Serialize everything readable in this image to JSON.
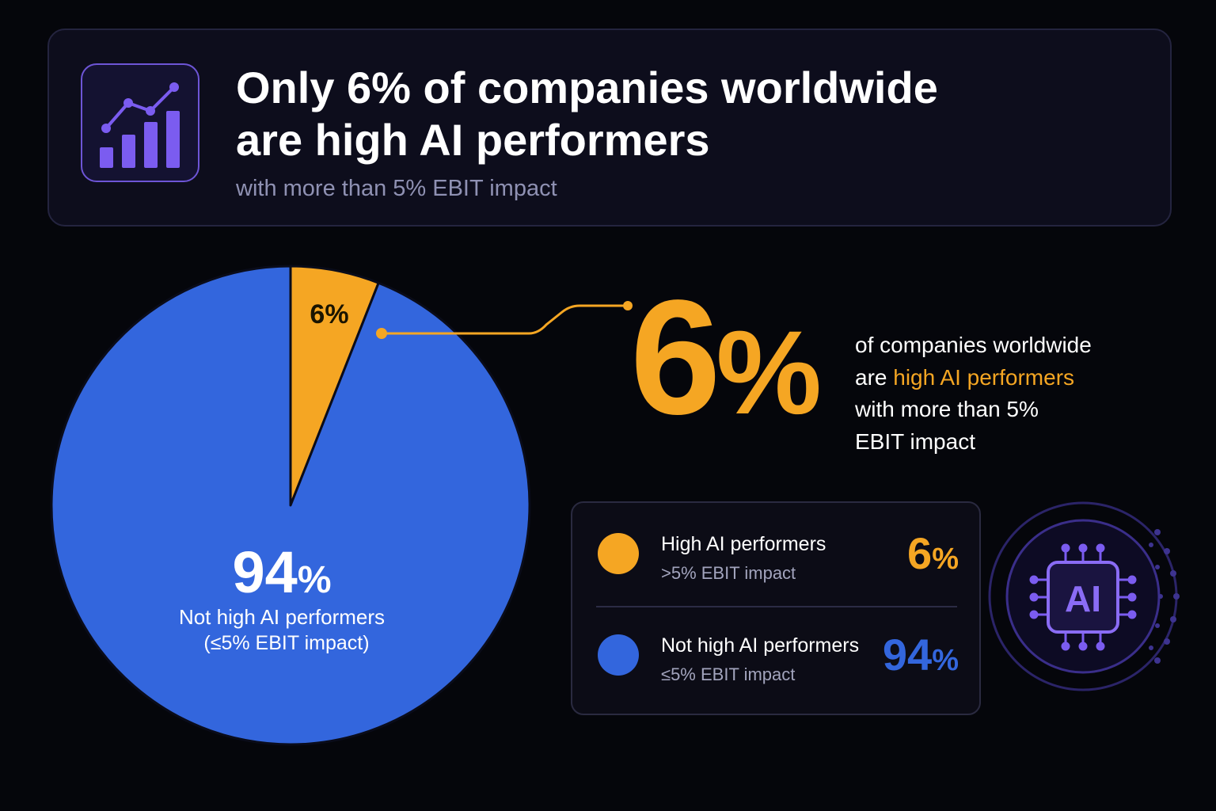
{
  "header": {
    "title_line1": "Only 6% of companies worldwide",
    "title_line2": "are high AI performers",
    "subtitle": "with more than 5% EBIT impact",
    "icon": "bar-chart-trend-icon"
  },
  "colors": {
    "high": "#f5a623",
    "not_high": "#3366dd",
    "background": "#05060b",
    "accent_purple": "#7b5cf0"
  },
  "chart_data": {
    "type": "pie",
    "title": "",
    "slices": [
      {
        "label": "High AI performers",
        "value": 6,
        "color": "#f5a623"
      },
      {
        "label": "Not high AI performers",
        "value": 94,
        "color": "#3366dd"
      }
    ]
  },
  "pie_labels": {
    "small_slice_label": "6%",
    "big_value": "94",
    "big_pct": "%",
    "big_category": "Not high AI performers",
    "big_note": "(≤5% EBIT impact)"
  },
  "callout": {
    "value": "6",
    "pct": "%",
    "line1": "of companies worldwide",
    "line2_prefix": "are ",
    "line2_highlight": "high AI performers",
    "line3": "with more than 5%",
    "line4": "EBIT impact"
  },
  "legend": {
    "items": [
      {
        "title": "High AI performers",
        "sub": ">5% EBIT impact",
        "value": "6",
        "pct": "%"
      },
      {
        "title": "Not high AI performers",
        "sub": "≤5% EBIT impact",
        "value": "94",
        "pct": "%"
      }
    ]
  },
  "badge": {
    "text": "AI",
    "icon": "ai-chip-icon"
  }
}
